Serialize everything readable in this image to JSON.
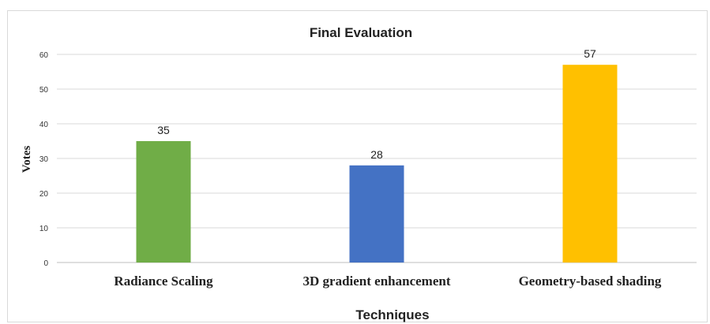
{
  "chart_data": {
    "type": "bar",
    "title": "Final Evaluation",
    "xlabel": "Techniques",
    "ylabel": "Votes",
    "categories": [
      "Radiance Scaling",
      "3D gradient enhancement",
      "Geometry-based shading"
    ],
    "values": [
      35,
      28,
      57
    ],
    "colors": [
      "#70ad47",
      "#4472c4",
      "#ffc000"
    ],
    "ylim": [
      0,
      60
    ],
    "yticks": [
      0,
      10,
      20,
      30,
      40,
      50,
      60
    ],
    "grid": true,
    "legend": "none"
  }
}
